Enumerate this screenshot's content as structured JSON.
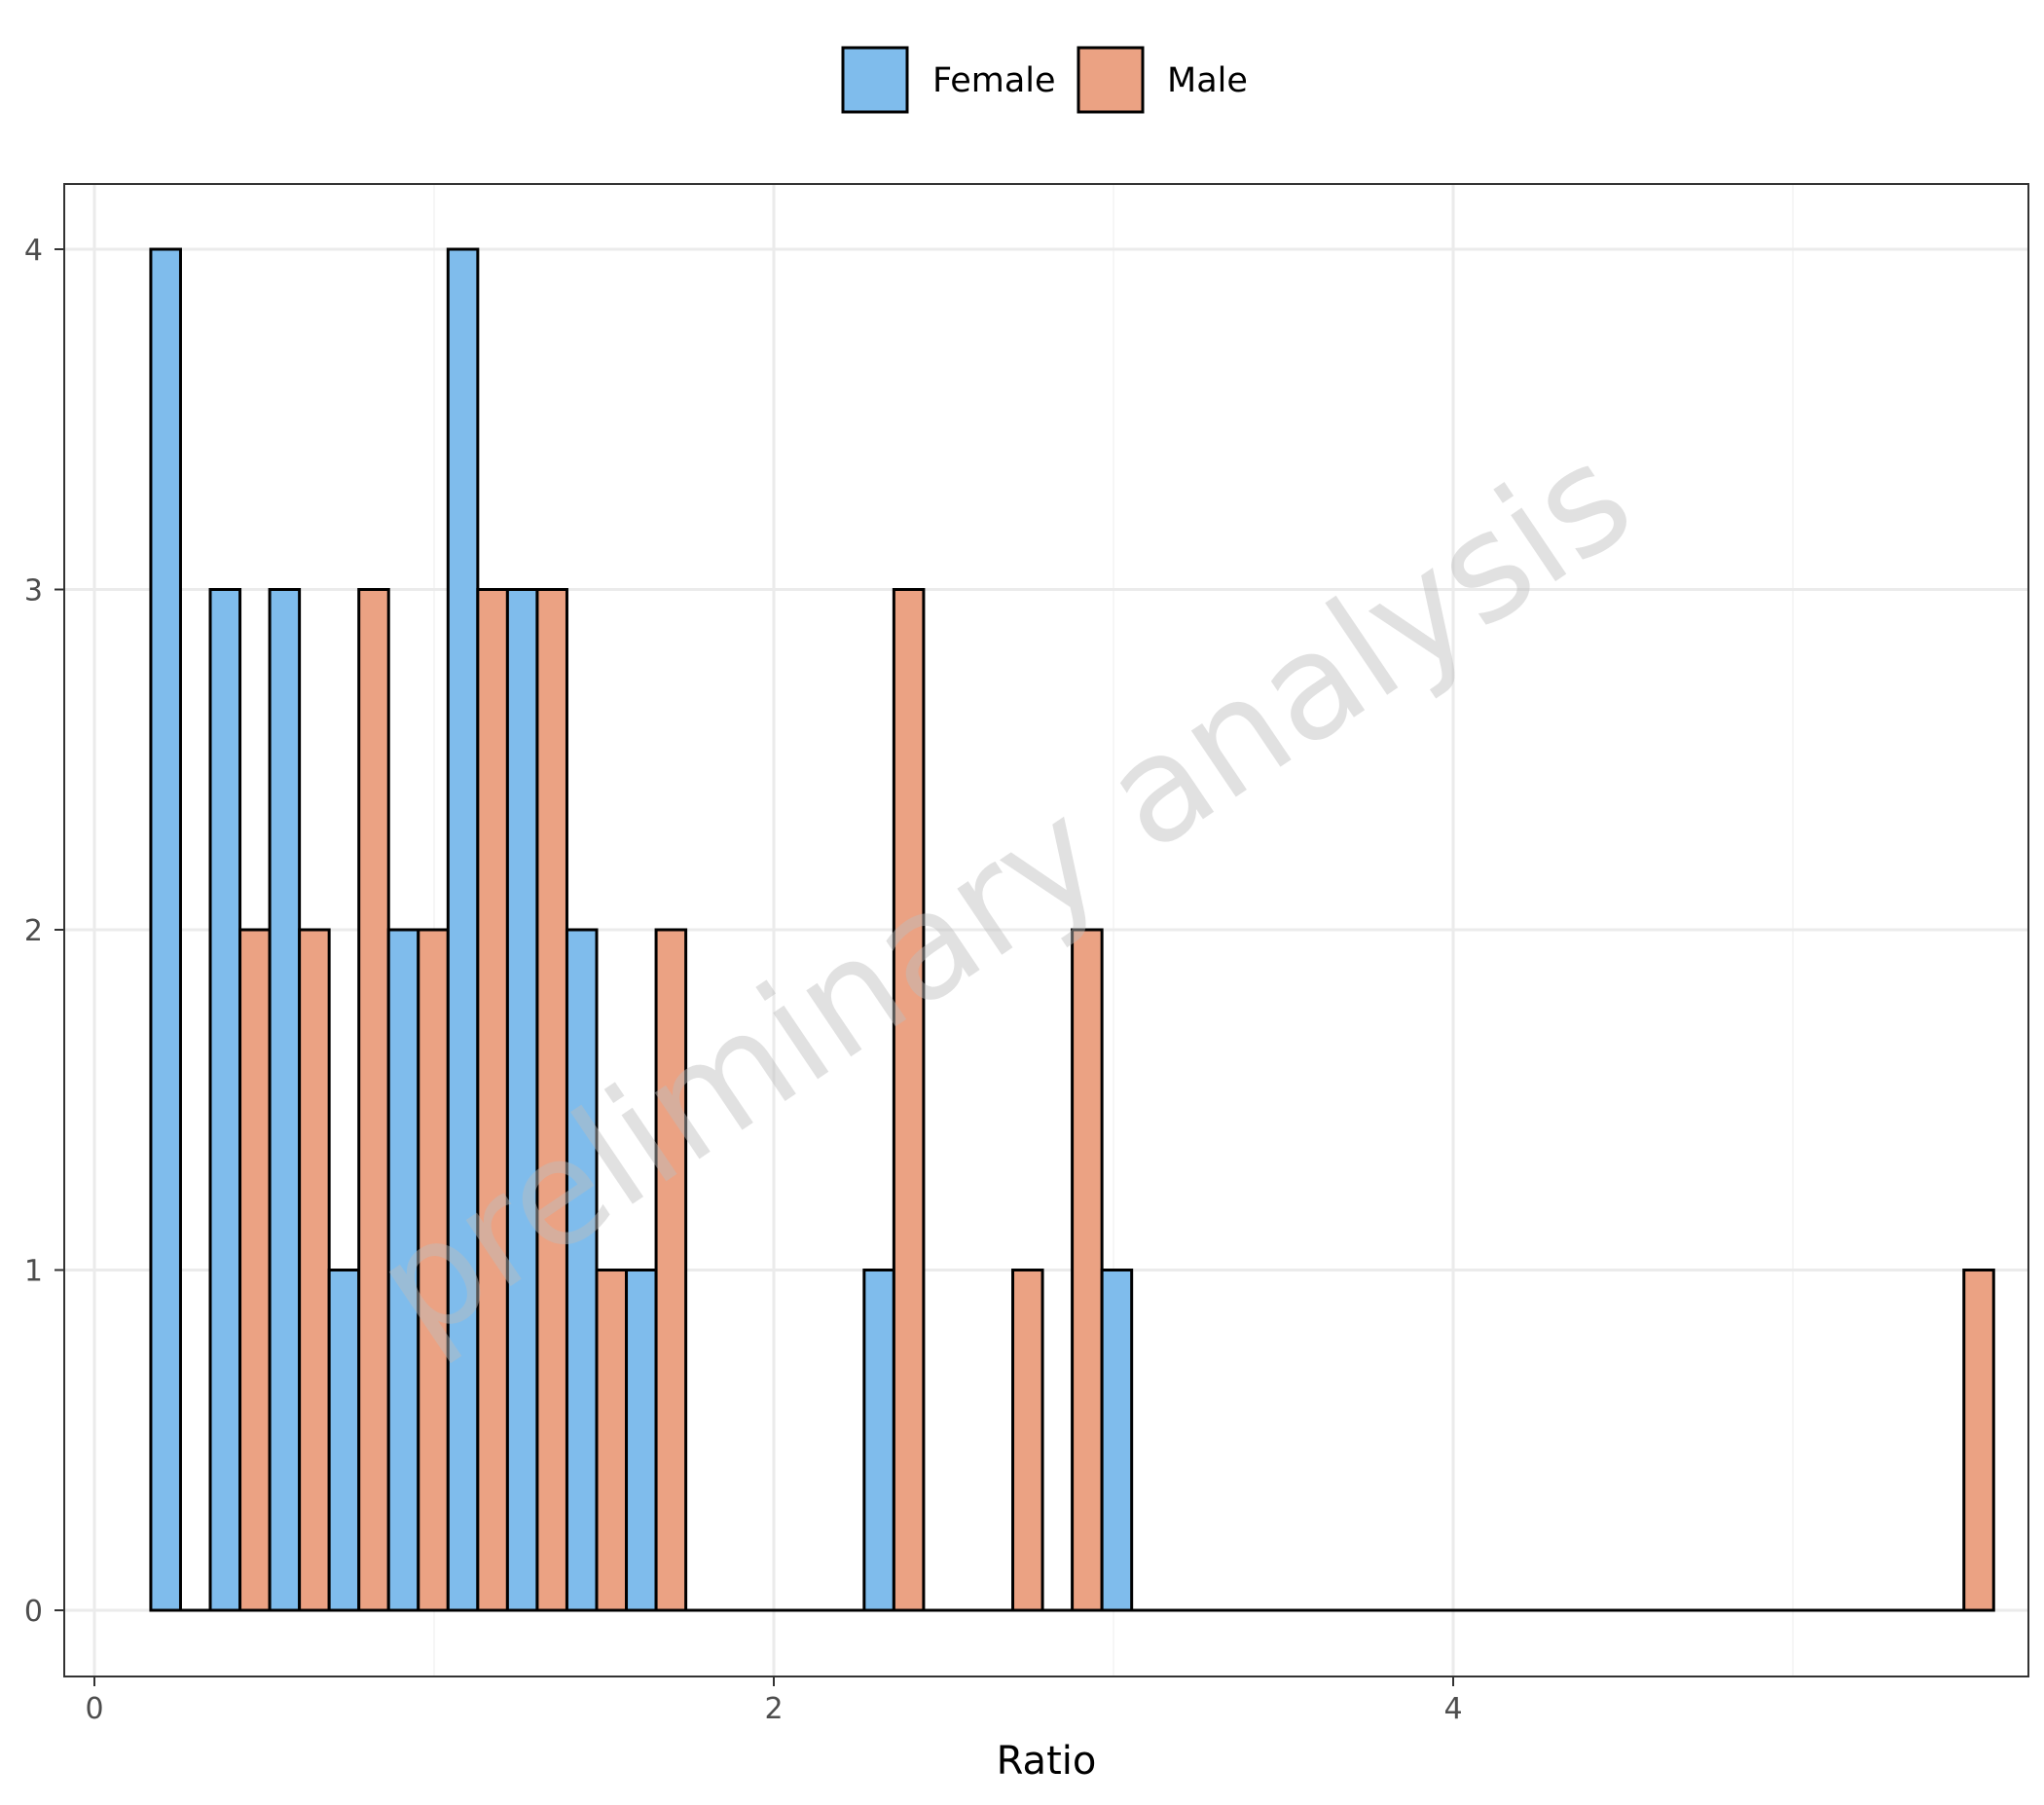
{
  "chart_data": {
    "type": "bar",
    "subtype": "dodged histogram",
    "title": "",
    "xlabel": "Ratio",
    "ylabel": "",
    "xlim": [
      -0.1,
      5.6
    ],
    "ylim": [
      -0.2,
      4.2
    ],
    "x_ticks": [
      0,
      2,
      4
    ],
    "y_ticks": [
      0,
      1,
      2,
      3,
      4
    ],
    "grid": true,
    "legend_position": "top",
    "bin_width": 0.175,
    "bin_start": 0.166,
    "series": [
      {
        "name": "Female",
        "color": "#7fbcec",
        "values": [
          4,
          3,
          3,
          1,
          2,
          4,
          3,
          2,
          1,
          0,
          0,
          0,
          1,
          0,
          0,
          0,
          1,
          0,
          0,
          0,
          0,
          0,
          0,
          0,
          0,
          0,
          0,
          0,
          0,
          0,
          0
        ]
      },
      {
        "name": "Male",
        "color": "#eba283",
        "values": [
          0,
          2,
          2,
          3,
          2,
          3,
          3,
          1,
          2,
          0,
          0,
          0,
          3,
          0,
          1,
          2,
          0,
          0,
          0,
          0,
          0,
          0,
          0,
          0,
          0,
          0,
          0,
          0,
          0,
          0,
          1
        ]
      }
    ],
    "watermark": "preliminary analysis"
  },
  "legend": {
    "items": [
      {
        "label": "Female",
        "color": "#7fbcec"
      },
      {
        "label": "Male",
        "color": "#eba283"
      }
    ]
  },
  "axes": {
    "x_title": "Ratio",
    "x_tick_labels": [
      "0",
      "2",
      "4"
    ],
    "y_tick_labels": [
      "0",
      "1",
      "2",
      "3",
      "4"
    ]
  },
  "watermark_text": "preliminary analysis"
}
